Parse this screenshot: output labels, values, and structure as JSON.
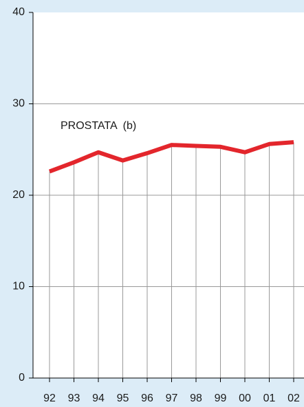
{
  "chart_data": {
    "type": "line",
    "categories": [
      "92",
      "93",
      "94",
      "95",
      "96",
      "97",
      "98",
      "99",
      "00",
      "01",
      "02"
    ],
    "series": [
      {
        "name": "PROSTATA  (b)",
        "color": "#e3262c",
        "values": [
          22.6,
          23.6,
          24.7,
          23.8,
          24.6,
          25.5,
          25.4,
          25.3,
          24.7,
          25.6,
          25.8
        ]
      }
    ],
    "ylim": [
      0,
      40
    ],
    "yticks": [
      0,
      10,
      20,
      30,
      40
    ],
    "grid": true
  }
}
